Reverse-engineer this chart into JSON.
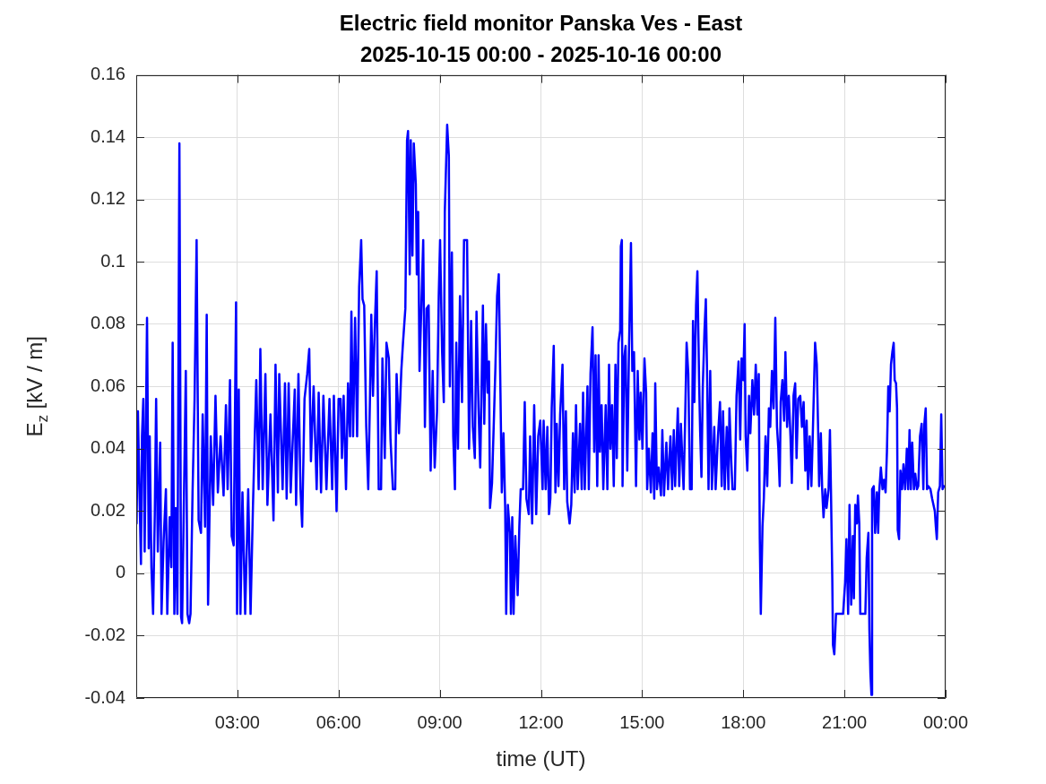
{
  "chart_data": {
    "type": "line",
    "title": "Electric field monitor Panska Ves - East",
    "subtitle": "2025-10-15 00:00 - 2025-10-16 00:00",
    "xlabel": "time (UT)",
    "ylabel": "E$_{z}$ [kV / m]",
    "x": [
      0.01,
      0.05,
      0.1,
      0.14,
      0.17,
      0.21,
      0.25,
      0.32,
      0.37,
      0.4,
      0.45,
      0.5,
      0.55,
      0.59,
      0.64,
      0.71,
      0.75,
      0.81,
      0.88,
      0.92,
      0.99,
      1.04,
      1.08,
      1.13,
      1.17,
      1.22,
      1.28,
      1.33,
      1.36,
      1.42,
      1.47,
      1.52,
      1.57,
      1.61,
      1.67,
      1.73,
      1.79,
      1.85,
      1.92,
      1.97,
      2.04,
      2.09,
      2.13,
      2.21,
      2.28,
      2.35,
      2.42,
      2.5,
      2.59,
      2.66,
      2.71,
      2.78,
      2.83,
      2.89,
      2.96,
      2.99,
      3.04,
      3.09,
      3.15,
      3.23,
      3.32,
      3.39,
      3.46,
      3.51,
      3.56,
      3.63,
      3.68,
      3.75,
      3.83,
      3.89,
      3.98,
      4.07,
      4.13,
      4.2,
      4.24,
      4.34,
      4.41,
      4.46,
      4.52,
      4.58,
      4.7,
      4.74,
      4.81,
      4.87,
      4.92,
      4.99,
      5.07,
      5.13,
      5.18,
      5.26,
      5.35,
      5.41,
      5.48,
      5.55,
      5.64,
      5.73,
      5.81,
      5.86,
      5.94,
      6.0,
      6.06,
      6.1,
      6.15,
      6.22,
      6.28,
      6.34,
      6.38,
      6.43,
      6.49,
      6.55,
      6.61,
      6.67,
      6.71,
      6.76,
      6.82,
      6.88,
      6.93,
      6.97,
      7.02,
      7.07,
      7.13,
      7.19,
      7.26,
      7.3,
      7.37,
      7.42,
      7.49,
      7.54,
      7.61,
      7.68,
      7.72,
      7.79,
      7.86,
      7.91,
      7.98,
      8.03,
      8.06,
      8.11,
      8.14,
      8.19,
      8.23,
      8.29,
      8.32,
      8.36,
      8.4,
      8.45,
      8.51,
      8.56,
      8.61,
      8.67,
      8.73,
      8.79,
      8.85,
      8.92,
      8.97,
      9.01,
      9.07,
      9.12,
      9.15,
      9.22,
      9.27,
      9.3,
      9.36,
      9.4,
      9.45,
      9.49,
      9.54,
      9.6,
      9.66,
      9.72,
      9.81,
      9.87,
      9.93,
      9.98,
      10.04,
      10.09,
      10.15,
      10.2,
      10.28,
      10.32,
      10.37,
      10.42,
      10.46,
      10.49,
      10.55,
      10.61,
      10.65,
      10.7,
      10.75,
      10.8,
      10.84,
      10.89,
      10.94,
      10.97,
      11.02,
      11.08,
      11.11,
      11.15,
      11.19,
      11.24,
      11.31,
      11.36,
      11.4,
      11.47,
      11.52,
      11.57,
      11.64,
      11.68,
      11.74,
      11.8,
      11.86,
      11.92,
      11.98,
      12.05,
      12.08,
      12.14,
      12.19,
      12.24,
      12.28,
      12.32,
      12.38,
      12.43,
      12.47,
      12.52,
      12.57,
      12.64,
      12.69,
      12.74,
      12.78,
      12.85,
      12.9,
      12.95,
      13.0,
      13.04,
      13.09,
      13.16,
      13.21,
      13.25,
      13.3,
      13.38,
      13.42,
      13.47,
      13.53,
      13.58,
      13.62,
      13.67,
      13.71,
      13.75,
      13.8,
      13.85,
      13.92,
      13.97,
      14.02,
      14.06,
      14.11,
      14.16,
      14.21,
      14.25,
      14.3,
      14.35,
      14.37,
      14.4,
      14.42,
      14.47,
      14.51,
      14.56,
      14.61,
      14.67,
      14.71,
      14.76,
      14.82,
      14.87,
      14.92,
      14.96,
      15.01,
      15.07,
      15.12,
      15.15,
      15.2,
      15.26,
      15.31,
      15.36,
      15.39,
      15.44,
      15.49,
      15.56,
      15.6,
      15.65,
      15.72,
      15.77,
      15.84,
      15.89,
      15.94,
      15.98,
      16.06,
      16.1,
      16.15,
      16.23,
      16.27,
      16.32,
      16.37,
      16.42,
      16.47,
      16.51,
      16.55,
      16.6,
      16.64,
      16.69,
      16.72,
      16.76,
      16.8,
      16.85,
      16.89,
      16.93,
      16.97,
      17.02,
      17.07,
      17.14,
      17.18,
      17.25,
      17.31,
      17.36,
      17.4,
      17.45,
      17.51,
      17.56,
      17.59,
      17.64,
      17.68,
      17.75,
      17.8,
      17.86,
      17.91,
      17.95,
      18.0,
      18.04,
      18.07,
      18.12,
      18.17,
      18.21,
      18.27,
      18.32,
      18.37,
      18.42,
      18.46,
      18.49,
      18.52,
      18.57,
      18.61,
      18.66,
      18.71,
      18.76,
      18.8,
      18.85,
      18.9,
      18.95,
      19.0,
      19.04,
      19.08,
      19.11,
      19.16,
      19.21,
      19.25,
      19.3,
      19.35,
      19.4,
      19.44,
      19.49,
      19.54,
      19.58,
      19.63,
      19.69,
      19.74,
      19.79,
      19.84,
      19.88,
      19.92,
      19.97,
      20.02,
      20.06,
      20.1,
      20.13,
      20.18,
      20.22,
      20.25,
      20.3,
      20.34,
      20.38,
      20.43,
      20.47,
      20.53,
      20.57,
      20.6,
      20.64,
      20.66,
      20.7,
      20.75,
      20.84,
      20.96,
      21.02,
      21.06,
      21.11,
      21.15,
      21.2,
      21.25,
      21.28,
      21.32,
      21.37,
      21.4,
      21.44,
      21.47,
      21.55,
      21.62,
      21.66,
      21.71,
      21.74,
      21.77,
      21.8,
      21.82,
      21.87,
      21.91,
      21.96,
      22.0,
      22.03,
      22.08,
      22.13,
      22.17,
      22.22,
      22.26,
      22.3,
      22.34,
      22.38,
      22.42,
      22.46,
      22.49,
      22.53,
      22.56,
      22.58,
      22.62,
      22.66,
      22.71,
      22.75,
      22.8,
      22.85,
      22.89,
      22.93,
      22.97,
      23.01,
      23.06,
      23.1,
      23.15,
      23.19,
      23.24,
      23.29,
      23.34,
      23.37,
      23.41,
      23.45,
      23.49,
      23.55,
      23.6,
      23.64,
      23.68,
      23.71,
      23.74,
      23.78,
      23.83,
      23.87,
      23.91,
      23.95
    ],
    "series": [
      {
        "color": "#0000ff",
        "values": [
          0.016,
          0.052,
          0.024,
          0.003,
          0.044,
          0.056,
          0.007,
          0.082,
          0.008,
          0.044,
          0.002,
          -0.013,
          0.019,
          0.056,
          0.007,
          0.042,
          -0.013,
          0.01,
          0.027,
          -0.013,
          0.018,
          0.002,
          0.074,
          -0.013,
          0.021,
          -0.013,
          0.138,
          -0.014,
          -0.016,
          0.028,
          0.065,
          -0.013,
          -0.016,
          -0.013,
          0.026,
          0.056,
          0.107,
          0.017,
          0.013,
          0.051,
          0.015,
          0.083,
          -0.01,
          0.044,
          0.022,
          0.057,
          0.026,
          0.044,
          0.025,
          0.054,
          0.027,
          0.062,
          0.012,
          0.009,
          0.087,
          -0.013,
          0.059,
          -0.013,
          0.026,
          -0.013,
          0.027,
          -0.013,
          0.021,
          0.042,
          0.062,
          0.027,
          0.072,
          0.027,
          0.064,
          0.022,
          0.051,
          0.017,
          0.067,
          0.026,
          0.064,
          0.027,
          0.061,
          0.024,
          0.061,
          0.026,
          0.059,
          0.022,
          0.064,
          0.027,
          0.015,
          0.056,
          0.064,
          0.072,
          0.036,
          0.06,
          0.027,
          0.058,
          0.026,
          0.057,
          0.027,
          0.056,
          0.027,
          0.057,
          0.02,
          0.056,
          0.056,
          0.037,
          0.057,
          0.027,
          0.061,
          0.044,
          0.084,
          0.044,
          0.082,
          0.044,
          0.092,
          0.107,
          0.088,
          0.086,
          0.047,
          0.027,
          0.056,
          0.083,
          0.057,
          0.078,
          0.097,
          0.027,
          0.027,
          0.069,
          0.037,
          0.074,
          0.069,
          0.043,
          0.027,
          0.027,
          0.064,
          0.045,
          0.065,
          0.074,
          0.085,
          0.139,
          0.142,
          0.096,
          0.139,
          0.102,
          0.138,
          0.125,
          0.096,
          0.116,
          0.065,
          0.084,
          0.107,
          0.047,
          0.085,
          0.086,
          0.033,
          0.065,
          0.034,
          0.052,
          0.089,
          0.107,
          0.071,
          0.055,
          0.116,
          0.144,
          0.134,
          0.06,
          0.103,
          0.044,
          0.027,
          0.074,
          0.04,
          0.089,
          0.055,
          0.107,
          0.107,
          0.04,
          0.081,
          0.047,
          0.037,
          0.084,
          0.053,
          0.034,
          0.086,
          0.048,
          0.08,
          0.058,
          0.068,
          0.021,
          0.029,
          0.051,
          0.066,
          0.089,
          0.096,
          0.058,
          0.026,
          0.045,
          0.021,
          -0.013,
          0.022,
          0.013,
          -0.013,
          0.018,
          -0.013,
          0.012,
          -0.007,
          0.015,
          0.027,
          0.027,
          0.055,
          0.024,
          0.019,
          0.044,
          0.016,
          0.054,
          0.019,
          0.044,
          0.049,
          0.027,
          0.049,
          0.027,
          0.047,
          0.019,
          0.024,
          0.053,
          0.073,
          0.026,
          0.048,
          0.028,
          0.051,
          0.067,
          0.027,
          0.052,
          0.023,
          0.016,
          0.022,
          0.045,
          0.026,
          0.054,
          0.027,
          0.048,
          0.027,
          0.058,
          0.027,
          0.06,
          0.027,
          0.064,
          0.079,
          0.039,
          0.07,
          0.028,
          0.07,
          0.039,
          0.054,
          0.027,
          0.054,
          0.027,
          0.067,
          0.04,
          0.054,
          0.028,
          0.067,
          0.037,
          0.074,
          0.078,
          0.105,
          0.107,
          0.028,
          0.069,
          0.073,
          0.033,
          0.071,
          0.106,
          0.065,
          0.071,
          0.028,
          0.065,
          0.043,
          0.058,
          0.04,
          0.069,
          0.058,
          0.027,
          0.04,
          0.026,
          0.045,
          0.024,
          0.061,
          0.027,
          0.034,
          0.025,
          0.046,
          0.025,
          0.042,
          0.027,
          0.044,
          0.027,
          0.046,
          0.028,
          0.053,
          0.028,
          0.048,
          0.027,
          0.046,
          0.074,
          0.064,
          0.027,
          0.027,
          0.081,
          0.055,
          0.086,
          0.097,
          0.062,
          0.046,
          0.031,
          0.06,
          0.078,
          0.088,
          0.062,
          0.027,
          0.065,
          0.027,
          0.047,
          0.027,
          0.044,
          0.055,
          0.028,
          0.052,
          0.027,
          0.047,
          0.027,
          0.053,
          0.037,
          0.027,
          0.027,
          0.057,
          0.068,
          0.043,
          0.069,
          0.062,
          0.08,
          0.044,
          0.033,
          0.057,
          0.045,
          0.062,
          0.051,
          0.067,
          0.051,
          0.064,
          0.011,
          -0.013,
          0.015,
          0.024,
          0.044,
          0.028,
          0.053,
          0.047,
          0.065,
          0.053,
          0.082,
          0.047,
          0.04,
          0.028,
          0.055,
          0.062,
          0.049,
          0.071,
          0.047,
          0.057,
          0.044,
          0.029,
          0.057,
          0.061,
          0.037,
          0.056,
          0.057,
          0.047,
          0.055,
          0.033,
          0.049,
          0.027,
          0.044,
          0.028,
          0.044,
          0.061,
          0.074,
          0.067,
          0.046,
          0.028,
          0.045,
          0.027,
          0.018,
          0.027,
          0.021,
          0.027,
          0.046,
          0.027,
          -0.002,
          -0.023,
          -0.026,
          -0.013,
          -0.013,
          -0.013,
          -0.003,
          0.011,
          -0.013,
          0.022,
          -0.01,
          0.012,
          -0.008,
          0.022,
          0.016,
          0.025,
          0.016,
          -0.013,
          -0.013,
          -0.013,
          0.005,
          0.013,
          -0.018,
          -0.032,
          -0.039,
          0.027,
          0.028,
          0.013,
          0.026,
          0.013,
          0.026,
          0.034,
          0.027,
          0.03,
          0.026,
          0.039,
          0.06,
          0.052,
          0.067,
          0.071,
          0.074,
          0.062,
          0.061,
          0.053,
          0.014,
          0.011,
          0.033,
          0.027,
          0.035,
          0.027,
          0.04,
          0.027,
          0.046,
          0.027,
          0.042,
          0.027,
          0.032,
          0.027,
          0.028,
          0.044,
          0.048,
          0.027,
          0.048,
          0.053,
          0.027,
          0.028,
          0.027,
          0.024,
          0.022,
          0.02,
          0.015,
          0.011,
          0.026,
          0.028,
          0.051,
          0.027,
          0.028
        ]
      }
    ],
    "xlim": [
      0,
      24
    ],
    "xticks": [
      {
        "value": 3,
        "label": "03:00"
      },
      {
        "value": 6,
        "label": "06:00"
      },
      {
        "value": 9,
        "label": "09:00"
      },
      {
        "value": 12,
        "label": "12:00"
      },
      {
        "value": 15,
        "label": "15:00"
      },
      {
        "value": 18,
        "label": "18:00"
      },
      {
        "value": 21,
        "label": "21:00"
      },
      {
        "value": 24,
        "label": "00:00"
      }
    ],
    "ylim": [
      -0.04,
      0.16
    ],
    "yticks": [
      -0.04,
      -0.02,
      0,
      0.02,
      0.04,
      0.06,
      0.08,
      0.1,
      0.12,
      0.14,
      0.16
    ],
    "grid": true,
    "legend": false
  }
}
